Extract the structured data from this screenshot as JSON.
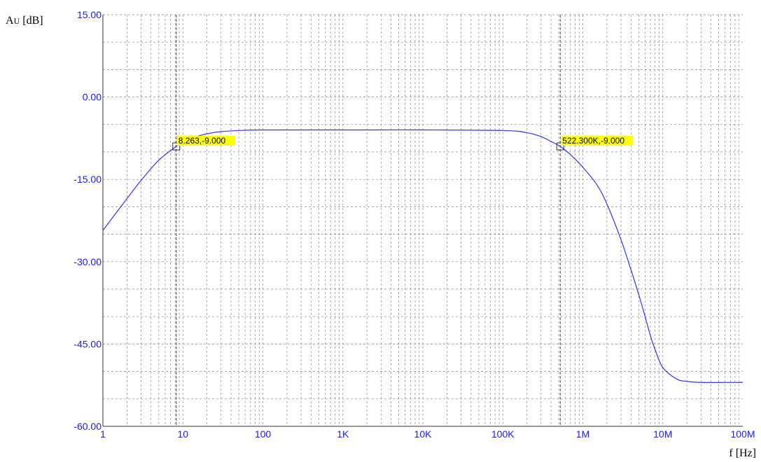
{
  "chart_data": {
    "type": "line",
    "xlabel": "f [Hz]",
    "ylabel": "AU [dB]",
    "ylabel_main": "A",
    "ylabel_sub": "U",
    "ylabel_unit": " [dB]",
    "x_scale": "log",
    "xlim": [
      1,
      100000000
    ],
    "ylim": [
      -60,
      15
    ],
    "x_ticks": [
      {
        "value": 1,
        "label": "1"
      },
      {
        "value": 10,
        "label": "10"
      },
      {
        "value": 100,
        "label": "100"
      },
      {
        "value": 1000,
        "label": "1K"
      },
      {
        "value": 10000,
        "label": "10K"
      },
      {
        "value": 100000,
        "label": "100K"
      },
      {
        "value": 1000000,
        "label": "1M"
      },
      {
        "value": 10000000,
        "label": "10M"
      },
      {
        "value": 100000000,
        "label": "100M"
      }
    ],
    "y_ticks": [
      {
        "value": 15,
        "label": "15.00"
      },
      {
        "value": 0,
        "label": "0.00"
      },
      {
        "value": -15,
        "label": "-15.00"
      },
      {
        "value": -30,
        "label": "-30.00"
      },
      {
        "value": -45,
        "label": "-45.00"
      },
      {
        "value": -60,
        "label": "-60.00"
      }
    ],
    "grid": true,
    "series": [
      {
        "color": "#3333ff",
        "points": [
          [
            1,
            -24.3
          ],
          [
            2,
            -18.5
          ],
          [
            3,
            -15.2
          ],
          [
            5,
            -11.5
          ],
          [
            8.263,
            -9.0
          ],
          [
            10,
            -8.3
          ],
          [
            15,
            -7.2
          ],
          [
            20,
            -6.7
          ],
          [
            30,
            -6.3
          ],
          [
            50,
            -6.1
          ],
          [
            100,
            -6.0
          ],
          [
            1000,
            -6.0
          ],
          [
            10000,
            -6.0
          ],
          [
            100000,
            -6.1
          ],
          [
            200000,
            -6.5
          ],
          [
            300000,
            -7.2
          ],
          [
            400000,
            -8.1
          ],
          [
            522300,
            -9.0
          ],
          [
            700000,
            -10.5
          ],
          [
            1000000,
            -12.8
          ],
          [
            1500000,
            -16.0
          ],
          [
            2000000,
            -19.5
          ],
          [
            3000000,
            -26.0
          ],
          [
            4000000,
            -31.5
          ],
          [
            5000000,
            -36.0
          ],
          [
            6000000,
            -40.0
          ],
          [
            7000000,
            -43.5
          ],
          [
            8000000,
            -46.0
          ],
          [
            10000000,
            -49.3
          ],
          [
            15000000,
            -51.4
          ],
          [
            20000000,
            -51.8
          ],
          [
            30000000,
            -52.0
          ],
          [
            100000000,
            -52.0
          ]
        ]
      }
    ],
    "annotations": [
      {
        "x": 8.263,
        "y": -9.0,
        "text": "8.263,-9.000"
      },
      {
        "x": 522300,
        "y": -9.0,
        "text": "522.300K,-9.000"
      }
    ],
    "colors": {
      "axis_text": "#1a1aff",
      "curve": "#3333ff",
      "grid": "#888888",
      "annotation_bg": "#ffff00",
      "cursor_line": "#666666"
    }
  }
}
